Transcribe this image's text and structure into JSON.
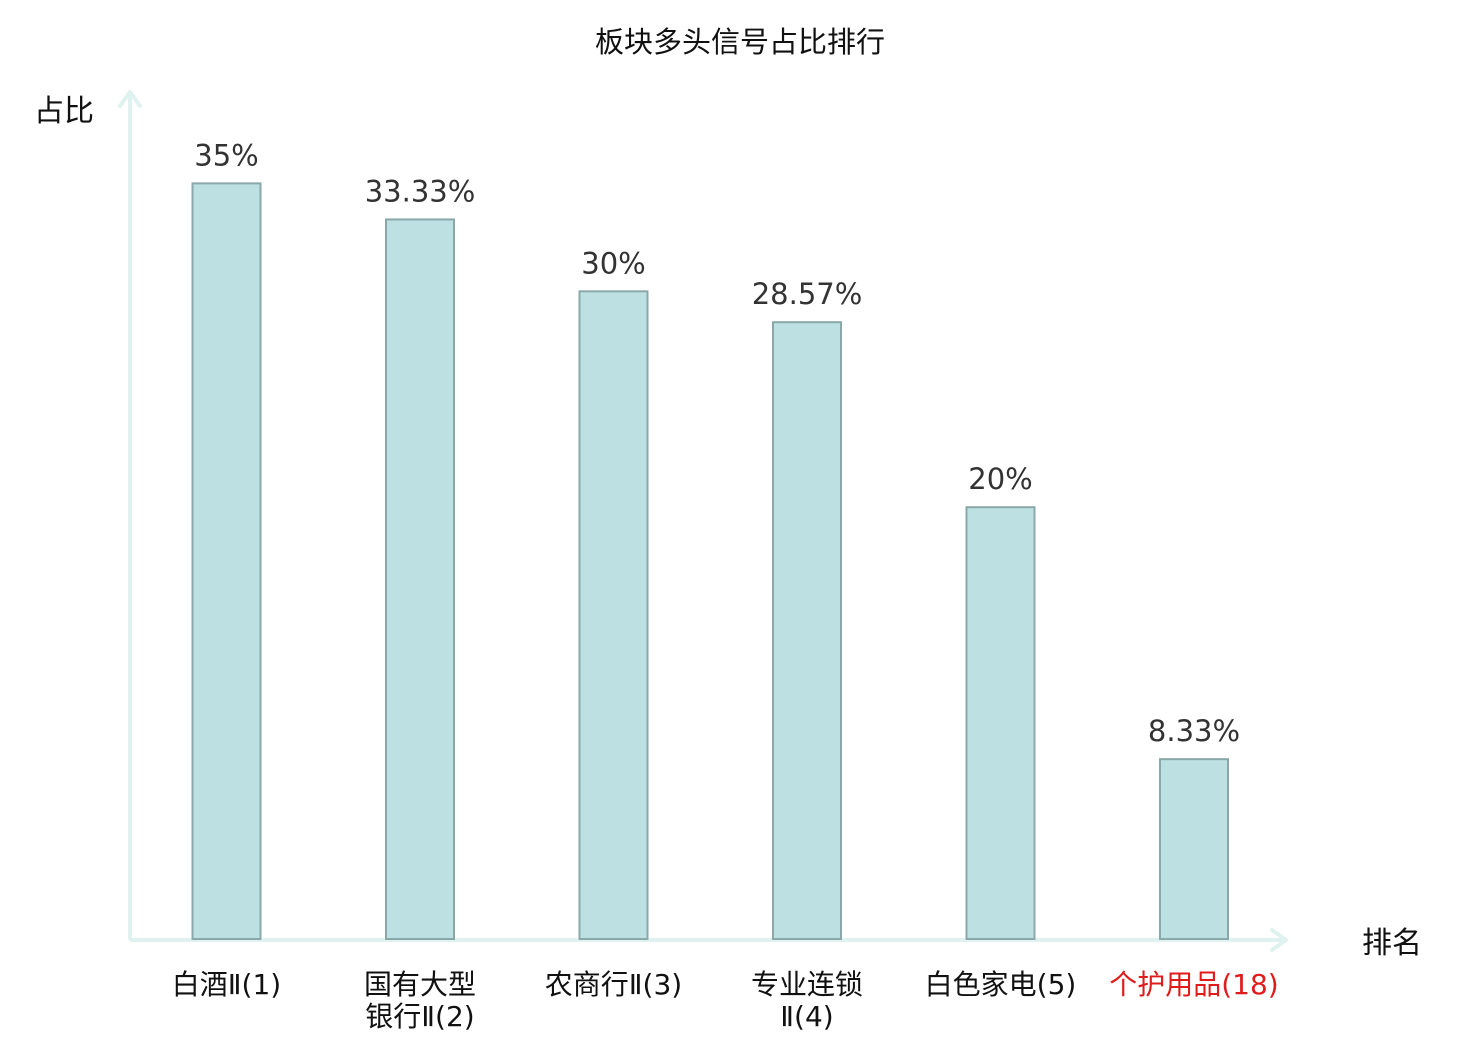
{
  "chart_data": {
    "type": "bar",
    "title": "板块多头信号占比排行",
    "ylabel": "占比",
    "xlabel": "排名",
    "ylim": [
      0,
      36.5
    ],
    "grid": false,
    "categories": [
      {
        "lines": [
          "白酒Ⅱ(1)"
        ]
      },
      {
        "lines": [
          "国有大型",
          "银行Ⅱ(2)"
        ]
      },
      {
        "lines": [
          "农商行Ⅱ(3)"
        ]
      },
      {
        "lines": [
          "专业连锁",
          "Ⅱ(4)"
        ]
      },
      {
        "lines": [
          "白色家电(5)"
        ]
      },
      {
        "lines": [
          "个护用品(18)"
        ],
        "highlight": true
      }
    ],
    "values": [
      35,
      33.33,
      30,
      28.57,
      20,
      8.33
    ],
    "value_labels": [
      "35%",
      "33.33%",
      "30%",
      "28.57%",
      "20%",
      "8.33%"
    ]
  },
  "colors": {
    "bar_fill": "#bde1e3",
    "bar_stroke": "#8aa8aa",
    "axis": "#e0f2ef",
    "text": "#111111",
    "value_text": "#333333",
    "highlight": "#e01b1b"
  }
}
